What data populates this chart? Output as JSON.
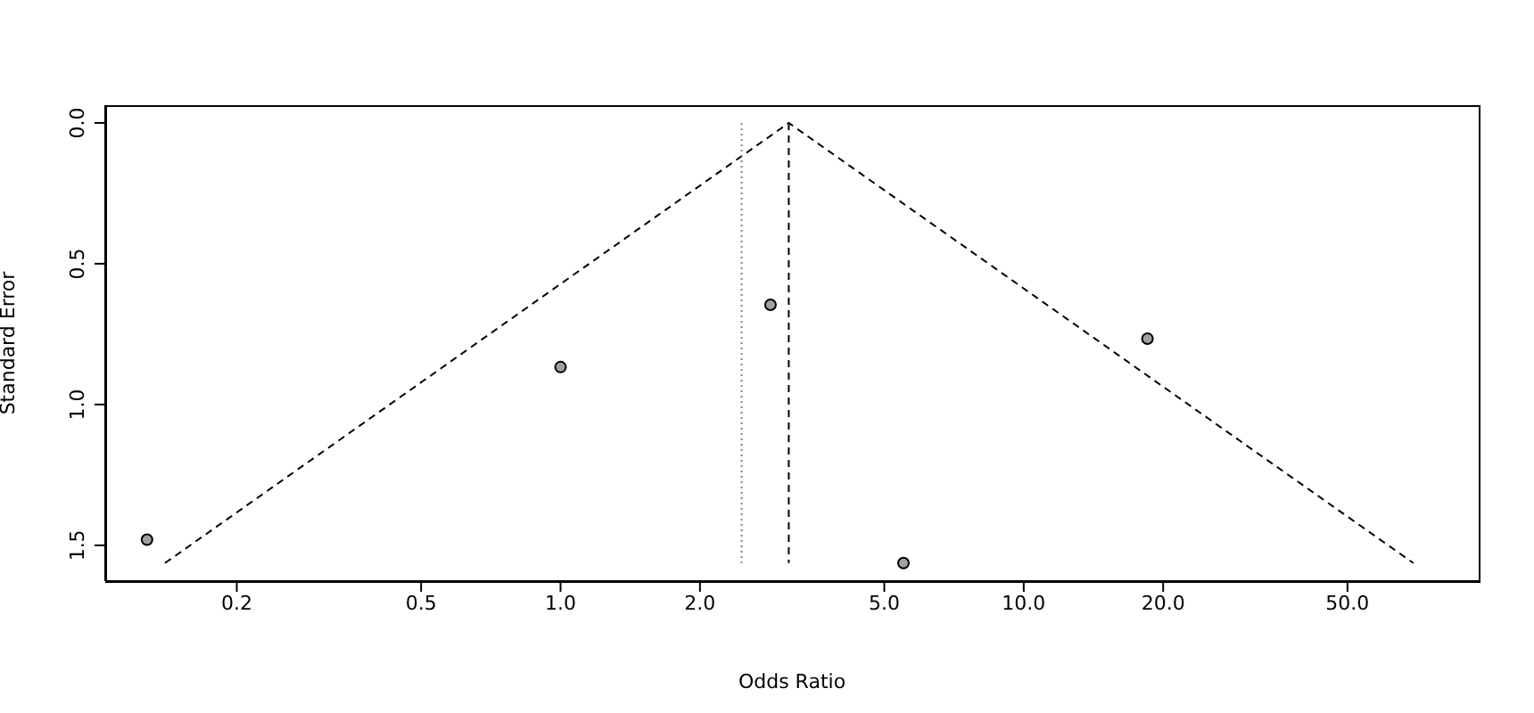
{
  "chart_data": {
    "type": "scatter",
    "xlabel": "Odds Ratio",
    "ylabel": "Standard Error",
    "log": "x",
    "grid": false,
    "legend": false,
    "marker": "circle",
    "xlim": [
      0.104,
      96
    ],
    "ylim": [
      1.627,
      -0.063
    ],
    "xticks": [
      0.2,
      0.5,
      {
        "value": 1,
        "label": "1.0"
      },
      {
        "value": 2,
        "label": "2.0"
      },
      {
        "value": 5,
        "label": "5.0"
      },
      {
        "value": 10,
        "label": "10.0"
      },
      {
        "value": 20,
        "label": "20.0"
      },
      {
        "value": 50,
        "label": "50.0"
      }
    ],
    "yticks": [
      {
        "value": 0,
        "label": "0.0"
      },
      0.5,
      {
        "value": 1,
        "label": "1.0"
      },
      1.5
    ],
    "series": [
      {
        "color": "#a0a0a0",
        "x": [
          0.128,
          1.0,
          2.84,
          5.5,
          18.5
        ],
        "values": [
          1.48,
          0.867,
          0.646,
          1.563,
          0.766
        ]
      },
      {
        "type": "line",
        "color": "#000000",
        "line_style": "dashed",
        "marker": "none",
        "x": [
          0.14,
          3.11,
          69.4
        ],
        "values": [
          1.563,
          0,
          1.563
        ]
      },
      {
        "type": "line",
        "color": "#000000",
        "line_style": "dashed",
        "marker": "none",
        "x": [
          3.11,
          3.11
        ],
        "values": [
          0,
          1.563
        ]
      },
      {
        "type": "line",
        "color": "#808080",
        "line_style": "dotted",
        "marker": "none",
        "x": [
          2.46,
          2.46
        ],
        "values": [
          0,
          1.563
        ]
      }
    ]
  }
}
